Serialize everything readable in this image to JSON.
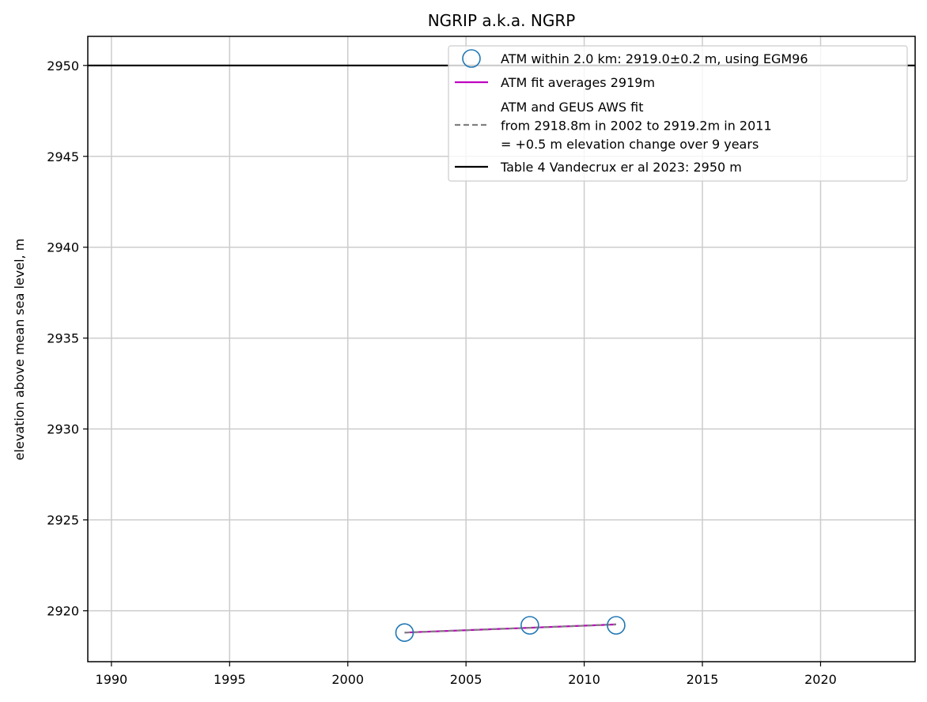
{
  "chart_data": {
    "type": "scatter",
    "title": "NGRIP a.k.a. NGRP",
    "xlabel": "",
    "ylabel": "elevation above mean sea level, m",
    "xlim": [
      1989,
      2024
    ],
    "ylim": [
      2917.2,
      2951.6
    ],
    "xticks": [
      1990,
      1995,
      2000,
      2005,
      2010,
      2015,
      2020
    ],
    "yticks": [
      2920,
      2925,
      2930,
      2935,
      2940,
      2945,
      2950
    ],
    "grid": true,
    "legend_position": "upper right",
    "colors": {
      "atm_points": "#1f77b4",
      "atm_fit": "#bf00bf",
      "aws_fit": "#808080",
      "table4": "#000000",
      "grid": "#cccccc"
    },
    "series": [
      {
        "name": "ATM within 2.0 km: 2919.0±0.2 m, using EGM96",
        "kind": "scatter-open-circle",
        "points": [
          {
            "x": 2002.4,
            "y": 2918.8
          },
          {
            "x": 2007.7,
            "y": 2919.2
          },
          {
            "x": 2011.35,
            "y": 2919.2
          }
        ]
      },
      {
        "name": "ATM fit averages 2919m",
        "kind": "line-solid",
        "points": [
          {
            "x": 2002.4,
            "y": 2918.8
          },
          {
            "x": 2011.35,
            "y": 2919.25
          }
        ]
      },
      {
        "name": "ATM and GEUS AWS fit\nfrom 2918.8m in 2002 to 2919.2m in 2011\n= +0.5 m elevation change over 9 years",
        "kind": "line-dashed",
        "points": [
          {
            "x": 2002.4,
            "y": 2918.8
          },
          {
            "x": 2011.35,
            "y": 2919.25
          }
        ]
      },
      {
        "name": "Table 4 Vandecrux er al 2023: 2950 m",
        "kind": "hline",
        "y": 2950
      }
    ]
  }
}
